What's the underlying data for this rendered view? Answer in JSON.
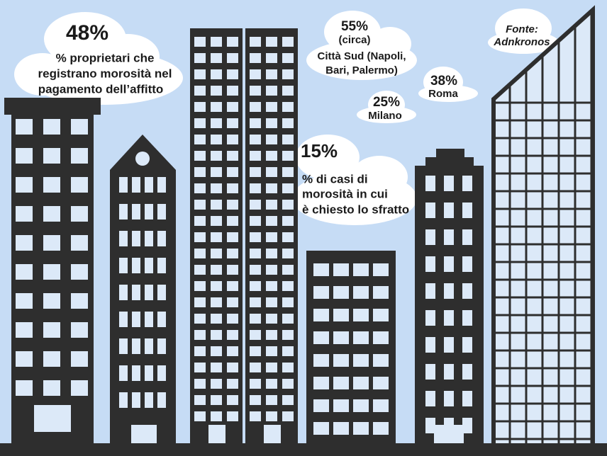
{
  "callouts": [
    {
      "value": "48%",
      "lines": [
        "% proprietari che",
        "registrano morosità nel",
        "pagamento dell’affitto"
      ]
    },
    {
      "value": "55%",
      "lines": [
        "(circa)",
        "Città Sud (Napoli,",
        "Bari, Palermo)"
      ]
    },
    {
      "value": "25%",
      "lines": [
        "Milano"
      ]
    },
    {
      "value": "38%",
      "lines": [
        "Roma"
      ]
    },
    {
      "value": "15%",
      "lines": [
        "% di casi di",
        "morosità in cui",
        "è chiesto lo sfratto"
      ]
    }
  ],
  "source": {
    "label": "Fonte:",
    "name": "Adnkronos"
  }
}
